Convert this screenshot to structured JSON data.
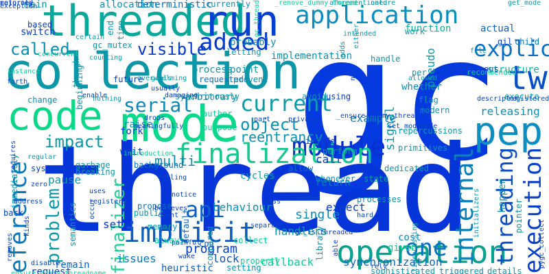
{
  "palette": {
    "background": "#ffffff"
  },
  "words": [
    {
      "text": "gc",
      "color": "#0539e0"
    },
    {
      "text": "thread",
      "color": "#0535d8"
    },
    {
      "text": "mode",
      "color": "#0ad88a"
    },
    {
      "text": "collection",
      "color": "#0c97a8"
    },
    {
      "text": "threaded",
      "color": "#0aa89a"
    },
    {
      "text": "run",
      "color": "#0640d0"
    },
    {
      "text": "application",
      "color": "#0a8ec0"
    },
    {
      "text": "code",
      "color": "#0ad888"
    },
    {
      "text": "pep",
      "color": "#0b8ec0"
    },
    {
      "text": "two",
      "color": "#0550c8"
    },
    {
      "text": "operation",
      "color": "#0aa090"
    },
    {
      "text": "module",
      "color": "#0730d0"
    },
    {
      "text": "finalization",
      "color": "#16c890"
    },
    {
      "text": "reference",
      "color": "#0a78b8"
    },
    {
      "text": "implicit",
      "color": "#0c5cc0"
    },
    {
      "text": "explicit",
      "color": "#0a70c0"
    },
    {
      "text": "execution",
      "color": "#0640c8"
    },
    {
      "text": "threading",
      "color": "#0a4cc8"
    },
    {
      "text": "internal",
      "color": "#0a80b8"
    },
    {
      "text": "added",
      "color": "#0538d0"
    },
    {
      "text": "current",
      "color": "#0a9ca8"
    },
    {
      "text": "serial",
      "color": "#0a88b8"
    },
    {
      "text": "called",
      "color": "#0a90b0"
    },
    {
      "text": "visible",
      "color": "#0538d0"
    },
    {
      "text": "impact",
      "color": "#0a98a8"
    },
    {
      "text": "object",
      "color": "#0a90b0"
    },
    {
      "text": "one",
      "color": "#0a70c0"
    },
    {
      "text": "api",
      "color": "#0a60c8"
    },
    {
      "text": "problem",
      "color": "#0a98a8"
    },
    {
      "text": "finalizer",
      "color": "#20d090"
    },
    {
      "text": "reentrancy",
      "color": "#0a90b0"
    },
    {
      "text": "handlers",
      "color": "#0a98a8"
    },
    {
      "text": "cycles",
      "color": "#0a9ca8"
    },
    {
      "text": "multi",
      "color": "#0a90b0"
    },
    {
      "text": "call",
      "color": "#0538d0"
    },
    {
      "text": "behaviour",
      "color": "#0a90b0"
    },
    {
      "text": "single",
      "color": "#0a8ab8"
    },
    {
      "text": "return",
      "color": "#0a7cc0"
    },
    {
      "text": "expect",
      "color": "#0b40c8"
    },
    {
      "text": "program",
      "color": "#0640c8"
    },
    {
      "text": "heuristic",
      "color": "#0a5cc8"
    },
    {
      "text": "lock",
      "color": "#0a50c8"
    },
    {
      "text": "synchronization",
      "color": "#0a68c0"
    },
    {
      "text": "callback",
      "color": "#0ad0a0"
    },
    {
      "text": "given",
      "color": "#0ad090"
    },
    {
      "text": "pause",
      "color": "#0a98a8"
    },
    {
      "text": "signal",
      "color": "#0a98a8"
    },
    {
      "text": "releasing",
      "color": "#0a90b0"
    },
    {
      "text": "example",
      "color": "#0a80b8"
    },
    {
      "text": "default",
      "color": "#0a60c8"
    },
    {
      "text": "set",
      "color": "#0538d0"
    },
    {
      "text": "issues",
      "color": "#0a78b8"
    },
    {
      "text": "remain",
      "color": "#0a60c8"
    },
    {
      "text": "request",
      "color": "#0640c8"
    },
    {
      "text": "cost",
      "color": "#0a8ab8"
    },
    {
      "text": "happen",
      "color": "#0a98a8"
    },
    {
      "text": "structure",
      "color": "#0ab0a0"
    },
    {
      "text": "pseudo",
      "color": "#0a98a8"
    },
    {
      "text": "function",
      "color": "#0ab098"
    },
    {
      "text": "actual",
      "color": "#0a60c8"
    },
    {
      "text": "whether",
      "color": "#0a90b0"
    },
    {
      "text": "asynchronous",
      "color": "#0640c8"
    },
    {
      "text": "gil",
      "color": "#0a3cc8"
    },
    {
      "text": "child",
      "color": "#0a78b8"
    },
    {
      "text": "recommended",
      "color": "#0ad098"
    },
    {
      "text": "execute",
      "color": "#0a98a8"
    },
    {
      "text": "flag",
      "color": "#0a98a8"
    },
    {
      "text": "modern",
      "color": "#0a90b0"
    },
    {
      "text": "fork",
      "color": "#0538d0"
    },
    {
      "text": "wait",
      "color": "#0640c8"
    },
    {
      "text": "raise",
      "color": "#0a90b0"
    },
    {
      "text": "arbitrary",
      "color": "#0a98a8"
    },
    {
      "text": "author",
      "color": "#0ad098"
    },
    {
      "text": "purpose",
      "color": "#0ad0a0"
    },
    {
      "text": "process",
      "color": "#0a98a8"
    },
    {
      "text": "point",
      "color": "#0a98a8"
    },
    {
      "text": "requested",
      "color": "#0a70c0"
    },
    {
      "text": "prevent",
      "color": "#0a90b0"
    },
    {
      "text": "background",
      "color": "#0a70c0"
    },
    {
      "text": "garbage",
      "color": "#0a98a8"
    },
    {
      "text": "breaking",
      "color": "#0a98a8"
    },
    {
      "text": "regular",
      "color": "#0a98a8"
    },
    {
      "text": "systems",
      "color": "#0640c8"
    },
    {
      "text": "immediately",
      "color": "#0a90b0"
    },
    {
      "text": "main",
      "color": "#0a98a8"
    },
    {
      "text": "allocation",
      "color": "#0a90b0"
    },
    {
      "text": "deterministic",
      "color": "#0a70c0"
    },
    {
      "text": "currently",
      "color": "#0a90b0"
    },
    {
      "text": "based",
      "color": "#0640c8"
    },
    {
      "text": "switch",
      "color": "#0640c8"
    },
    {
      "text": "implementation",
      "color": "#0a90b0"
    },
    {
      "text": "letting",
      "color": "#0a98a8"
    },
    {
      "text": "probably",
      "color": "#0a90b0"
    },
    {
      "text": "synchronously",
      "color": "#0a90b0"
    },
    {
      "text": "memory",
      "color": "#0a98a8"
    },
    {
      "text": "always",
      "color": "#0ad098"
    },
    {
      "text": "propose",
      "color": "#0a70c0"
    },
    {
      "text": "public",
      "color": "#0a98a8"
    },
    {
      "text": "semantics",
      "color": "#0a98a8"
    },
    {
      "text": "cpu",
      "color": "#0a60c8"
    },
    {
      "text": "compared",
      "color": "#0a90b0"
    },
    {
      "text": "setting",
      "color": "#0a90b0"
    },
    {
      "text": "property",
      "color": "#0ad098"
    },
    {
      "text": "collect",
      "color": "#0ad098"
    },
    {
      "text": "library",
      "color": "#0a90b0"
    },
    {
      "text": "multiprocessing",
      "color": "#0a90b0"
    },
    {
      "text": "sophisticated",
      "color": "#0a98a8"
    },
    {
      "text": "triggered",
      "color": "#0a90b0"
    },
    {
      "text": "details",
      "color": "#0a98a8"
    },
    {
      "text": "pointer",
      "color": "#0a98a8"
    },
    {
      "text": "initializers",
      "color": "#0a90b0"
    },
    {
      "text": "processes",
      "color": "#0a90b0"
    },
    {
      "text": "state",
      "color": "#0a98a8"
    },
    {
      "text": "dedicated",
      "color": "#0a98a8"
    },
    {
      "text": "primitives",
      "color": "#0a98a8"
    },
    {
      "text": "repercussions",
      "color": "#0a98a8"
    },
    {
      "text": "inside",
      "color": "#0640c8"
    },
    {
      "text": "perform",
      "color": "#0a98a8"
    },
    {
      "text": "whenever",
      "color": "#0a90b0"
    },
    {
      "text": "allow",
      "color": "#0a70c0"
    },
    {
      "text": "avoid",
      "color": "#0a90b0"
    },
    {
      "text": "using",
      "color": "#0640c8"
    },
    {
      "text": "change",
      "color": "#0a90b0"
    },
    {
      "text": "nothing",
      "color": "#0a98a8"
    },
    {
      "text": "overwhelming",
      "color": "#0a98a8"
    },
    {
      "text": "though",
      "color": "#0a98a8"
    },
    {
      "text": "future",
      "color": "#0640c8"
    },
    {
      "text": "goals",
      "color": "#0a98a8"
    },
    {
      "text": "beginning",
      "color": "#0a98a8"
    },
    {
      "text": "certain",
      "color": "#0a98a8"
    },
    {
      "text": "gc_mutex",
      "color": "#0a98a8"
    },
    {
      "text": "counting",
      "color": "#0a98a8"
    },
    {
      "text": "end",
      "color": "#0a98a8"
    },
    {
      "text": "time",
      "color": "#0a98a8"
    },
    {
      "text": "work",
      "color": "#0a98a8"
    },
    {
      "text": "per",
      "color": "#0a98a8"
    },
    {
      "text": "handle",
      "color": "#0a98a8"
    },
    {
      "text": "file",
      "color": "#0a98a8"
    },
    {
      "text": "allowed",
      "color": "#0a98a8"
    },
    {
      "text": "adds",
      "color": "#0a98a8"
    },
    {
      "text": "intended",
      "color": "#0a98a8"
    },
    {
      "text": "either",
      "color": "#0a98a8"
    },
    {
      "text": "aforementioned",
      "color": "#0a98a8"
    },
    {
      "text": "nature",
      "color": "#0a98a8"
    },
    {
      "text": "get_mode",
      "color": "#0a98a8"
    },
    {
      "text": "_remove_dummy_thread",
      "color": "#0ad098"
    },
    {
      "text": "gc_thread",
      "color": "#0ad098"
    },
    {
      "text": "exception",
      "color": "#0640c8"
    },
    {
      "text": "concurrent",
      "color": "#0ad098"
    },
    {
      "text": "instance",
      "color": "#0ad098"
    },
    {
      "text": "forth",
      "color": "#0640c8"
    },
    {
      "text": "back",
      "color": "#0640c8"
    },
    {
      "text": "kinds",
      "color": "#0640c8"
    },
    {
      "text": "address",
      "color": "#0640c8"
    },
    {
      "text": "zero",
      "color": "#0640c8"
    },
    {
      "text": "disable",
      "color": "#0640c8"
    },
    {
      "text": "removes",
      "color": "#0640c8"
    },
    {
      "text": "requires",
      "color": "#0640c8"
    },
    {
      "text": "_ensure_dummy_threadname",
      "color": "#0ad098"
    },
    {
      "text": "registers",
      "color": "#0640c8"
    },
    {
      "text": "uses",
      "color": "#0640c8"
    },
    {
      "text": "occur",
      "color": "#0640c8"
    },
    {
      "text": "telling",
      "color": "#0640c8"
    },
    {
      "text": "believes",
      "color": "#0640c8"
    },
    {
      "text": "count",
      "color": "#0640c8"
    },
    {
      "text": "notice",
      "color": "#0640c8"
    },
    {
      "text": "mess",
      "color": "#0640c8"
    },
    {
      "text": "wake",
      "color": "#0640c8"
    },
    {
      "text": "painful",
      "color": "#0640c8"
    },
    {
      "text": "separate",
      "color": "#0640c8"
    },
    {
      "text": "able",
      "color": "#0640c8"
    },
    {
      "text": "rely",
      "color": "#0640c8"
    },
    {
      "text": "creates",
      "color": "#0640c8"
    },
    {
      "text": "dead",
      "color": "#0640c8"
    },
    {
      "text": "hard",
      "color": "#0640c8"
    },
    {
      "text": "pygc_collect",
      "color": "#0640c8"
    },
    {
      "text": "gc_is_threaded",
      "color": "#0640c8"
    },
    {
      "text": "meaningfully",
      "color": "#0640c8"
    },
    {
      "text": "_ensure_dummy_thread",
      "color": "#0640c8"
    },
    {
      "text": "part",
      "color": "#0640c8"
    },
    {
      "text": "private",
      "color": "#0640c8"
    },
    {
      "text": "set_modemode",
      "color": "#0640c8"
    },
    {
      "text": "descriptor",
      "color": "#0640c8"
    },
    {
      "text": "registered",
      "color": "#0640c8"
    },
    {
      "text": "non",
      "color": "#0640c8"
    },
    {
      "text": "enable",
      "color": "#0640c8"
    },
    {
      "text": "usually",
      "color": "#0640c8"
    },
    {
      "text": "drops",
      "color": "#0640c8"
    },
    {
      "text": "damaging",
      "color": "#0640c8"
    },
    {
      "text": "introduction",
      "color": "#0ad098"
    },
    {
      "text": "returned",
      "color": "#0640c8"
    },
    {
      "text": "majority",
      "color": "#0640c8"
    }
  ]
}
